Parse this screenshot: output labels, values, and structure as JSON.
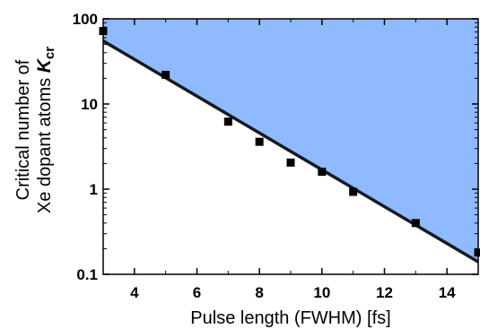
{
  "chart_data": {
    "type": "line",
    "title": "",
    "xlabel": "Pulse length (FWHM) [fs]",
    "ylabel": {
      "line1": "Critical number of",
      "line2_text": "Xe dopant atoms ",
      "symbol": "K",
      "subscript": "cr"
    },
    "xlim": [
      3,
      15
    ],
    "ylim": [
      0.1,
      100
    ],
    "yscale": "log",
    "xticks": [
      4,
      6,
      8,
      10,
      12,
      14
    ],
    "yticks": [
      0.1,
      1,
      10,
      100
    ],
    "ytick_labels": [
      "0.1",
      "1",
      "10",
      "100"
    ],
    "grid": false,
    "legend": "none",
    "colors": {
      "fill": "#8fbaff",
      "line": "#1a1a1a",
      "marker": "#000000"
    },
    "series": [
      {
        "type": "line",
        "x": [
          3,
          15
        ],
        "y": [
          55,
          0.14
        ]
      },
      {
        "type": "scatter",
        "x": [
          3,
          5,
          7,
          8,
          9,
          10,
          11,
          13,
          15
        ],
        "y": [
          72,
          22,
          6.2,
          3.6,
          2.05,
          1.6,
          0.93,
          0.4,
          0.18
        ]
      }
    ],
    "shaded_region": "above fit line"
  }
}
